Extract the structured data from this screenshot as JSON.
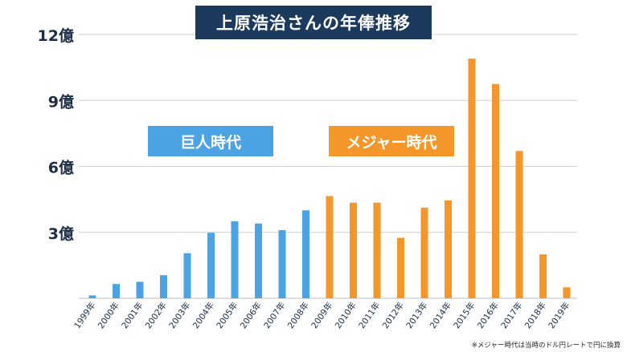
{
  "title": "上原浩治さんの年俸推移",
  "footnote": "※メジャー時代は当時のドル円レートで円に換算",
  "eras": {
    "giants": {
      "label": "巨人時代",
      "color": "#4ba3e3"
    },
    "major": {
      "label": "メジャー時代",
      "color": "#f5962b"
    }
  },
  "chart_data": {
    "type": "bar",
    "title": "上原浩治さんの年俸推移",
    "xlabel": "",
    "ylabel": "",
    "ylim": [
      0,
      12
    ],
    "yticks": [
      3,
      6,
      9,
      12
    ],
    "ytick_labels": [
      "3億",
      "6億",
      "9億",
      "12億"
    ],
    "grid": true,
    "categories": [
      "1999年",
      "2000年",
      "2001年",
      "2002年",
      "2003年",
      "2004年",
      "2005年",
      "2006年",
      "2007年",
      "2008年",
      "2009年",
      "2010年",
      "2011年",
      "2012年",
      "2013年",
      "2014年",
      "2015年",
      "2016年",
      "2017年",
      "2018年",
      "2019年"
    ],
    "values": [
      0.13,
      0.65,
      0.75,
      1.05,
      2.05,
      2.98,
      3.5,
      3.4,
      3.1,
      4.0,
      4.65,
      4.35,
      4.35,
      2.75,
      4.12,
      4.45,
      10.9,
      9.75,
      6.7,
      2.0,
      0.5
    ],
    "era": [
      "giants",
      "giants",
      "giants",
      "giants",
      "giants",
      "giants",
      "giants",
      "giants",
      "giants",
      "giants",
      "major",
      "major",
      "major",
      "major",
      "major",
      "major",
      "major",
      "major",
      "major",
      "major",
      "major"
    ]
  }
}
